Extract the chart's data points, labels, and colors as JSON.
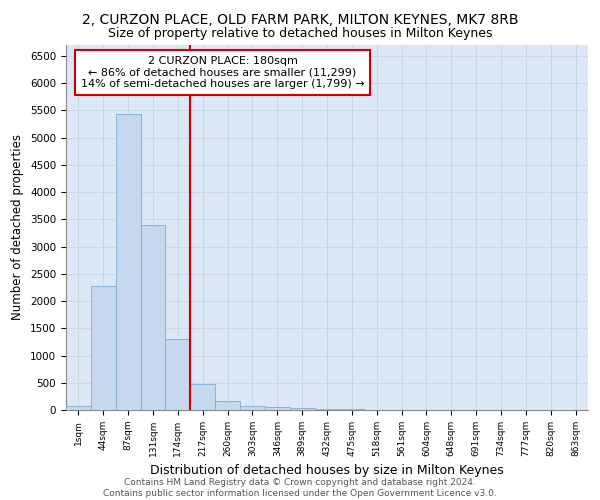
{
  "title1": "2, CURZON PLACE, OLD FARM PARK, MILTON KEYNES, MK7 8RB",
  "title2": "Size of property relative to detached houses in Milton Keynes",
  "xlabel": "Distribution of detached houses by size in Milton Keynes",
  "ylabel": "Number of detached properties",
  "footer1": "Contains HM Land Registry data © Crown copyright and database right 2024.",
  "footer2": "Contains public sector information licensed under the Open Government Licence v3.0.",
  "bar_labels": [
    "1sqm",
    "44sqm",
    "87sqm",
    "131sqm",
    "174sqm",
    "217sqm",
    "260sqm",
    "303sqm",
    "346sqm",
    "389sqm",
    "432sqm",
    "475sqm",
    "518sqm",
    "561sqm",
    "604sqm",
    "648sqm",
    "691sqm",
    "734sqm",
    "777sqm",
    "820sqm",
    "863sqm"
  ],
  "bar_heights": [
    75,
    2270,
    5430,
    3400,
    1310,
    480,
    160,
    80,
    55,
    35,
    20,
    10,
    0,
    0,
    0,
    0,
    0,
    0,
    0,
    0,
    0
  ],
  "bar_color": "#c5d8ee",
  "bar_edgecolor": "#7aaed4",
  "grid_color": "#c8d8e8",
  "background_color": "#dce8f5",
  "vline_x": 4.5,
  "vline_color": "#cc0000",
  "annotation_line1": "2 CURZON PLACE: 180sqm",
  "annotation_line2": "← 86% of detached houses are smaller (11,299)",
  "annotation_line3": "14% of semi-detached houses are larger (1,799) →",
  "annotation_box_color": "#cc0000",
  "ylim": [
    0,
    6700
  ],
  "yticks": [
    0,
    500,
    1000,
    1500,
    2000,
    2500,
    3000,
    3500,
    4000,
    4500,
    5000,
    5500,
    6000,
    6500
  ],
  "title1_fontsize": 10,
  "title2_fontsize": 9,
  "xlabel_fontsize": 9,
  "ylabel_fontsize": 8.5,
  "annotation_fontsize": 8,
  "tick_fontsize": 7.5,
  "footer_fontsize": 6.5
}
